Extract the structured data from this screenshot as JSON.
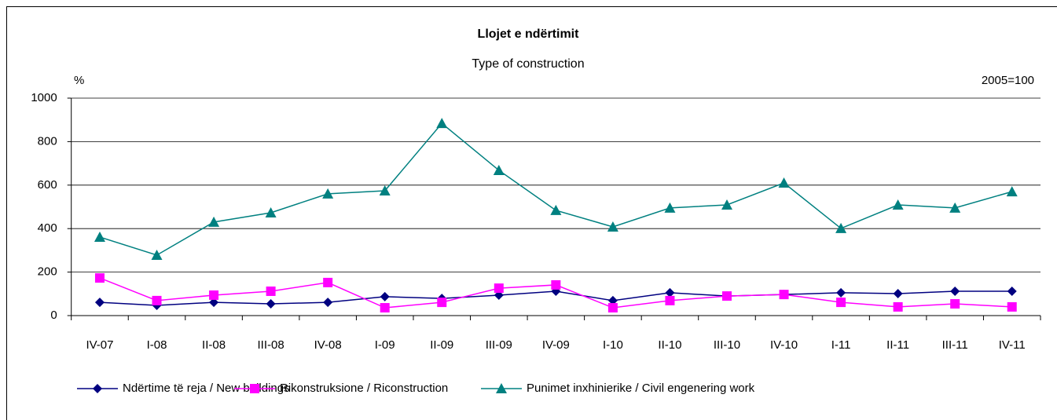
{
  "chart_data": {
    "type": "line",
    "title": "Llojet e ndërtimit",
    "subtitle": "Type of construction",
    "y_label": "%",
    "annotation": "2005=100",
    "categories": [
      "IV-07",
      "I-08",
      "II-08",
      "III-08",
      "IV-08",
      "I-09",
      "II-09",
      "III-09",
      "IV-09",
      "I-10",
      "II-10",
      "III-10",
      "IV-10",
      "I-11",
      "II-11",
      "III-11",
      "IV-11"
    ],
    "series": [
      {
        "name": "Ndërtime të reja / New  buildings",
        "color": "#000080",
        "marker": "diamond",
        "values": [
          61,
          47,
          61,
          54,
          61,
          87,
          79,
          94,
          112,
          69,
          105,
          90,
          97,
          105,
          101,
          112,
          112
        ]
      },
      {
        "name": "Rikonstruksione / Riconstruction",
        "color": "#ff00ff",
        "marker": "square",
        "values": [
          173,
          69,
          94,
          112,
          152,
          36,
          61,
          126,
          141,
          36,
          69,
          90,
          97,
          61,
          40,
          54,
          40
        ]
      },
      {
        "name": "Punimet inxhinierike / Civil engenering work",
        "color": "#008080",
        "marker": "triangle",
        "values": [
          361,
          278,
          430,
          473,
          560,
          574,
          884,
          668,
          484,
          408,
          495,
          509,
          610,
          401,
          509,
          495,
          570
        ]
      }
    ],
    "ylim": [
      0,
      1000
    ],
    "yticks": [
      0,
      200,
      400,
      600,
      800,
      1000
    ],
    "grid": true,
    "legend": "bottom"
  }
}
